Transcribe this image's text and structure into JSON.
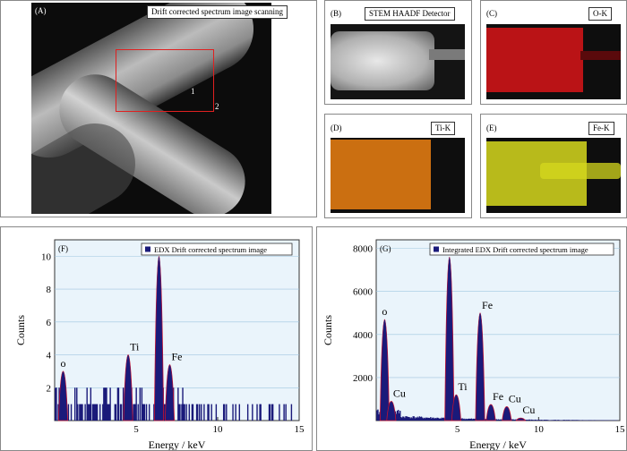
{
  "panels": {
    "a": {
      "label": "(A)",
      "title": "Drift corrected spectrum image scanning",
      "roi_1": "1",
      "roi_2": "2"
    },
    "b": {
      "label": "(B)",
      "title": "STEM HAADF Detector"
    },
    "c": {
      "label": "(C)",
      "title": "O-K",
      "color": "#d81418"
    },
    "d": {
      "label": "(D)",
      "title": "Ti-K",
      "color": "#e07a12"
    },
    "e": {
      "label": "(E)",
      "title": "Fe-K",
      "color": "#d6d81e"
    }
  },
  "chart_data": [
    {
      "type": "bar",
      "panel_label": "(F)",
      "legend": "EDX Drift corrected spectrum image",
      "legend_placement": "top",
      "xlabel": "Energy / keV",
      "ylabel": "Counts",
      "xlim": [
        0,
        15
      ],
      "ylim": [
        0,
        11
      ],
      "xticks": [
        5,
        10,
        15
      ],
      "yticks": [
        2,
        4,
        6,
        8,
        10
      ],
      "grid": true,
      "bar_color": "#1a1a7a",
      "envelope_color": "#c8102e",
      "peaks": [
        {
          "x": 0.52,
          "y": 3.0,
          "label": "o"
        },
        {
          "x": 4.51,
          "y": 4.0,
          "label": "Ti"
        },
        {
          "x": 6.4,
          "y": 10.0,
          "label": "Fe"
        },
        {
          "x": 7.06,
          "y": 3.4,
          "label": "Fe"
        }
      ]
    },
    {
      "type": "bar",
      "panel_label": "(G)",
      "legend": "Integrated EDX Drift corrected spectrum image",
      "legend_placement": "top",
      "xlabel": "Energy / keV",
      "ylabel": "Counts",
      "xlim": [
        0,
        15
      ],
      "ylim": [
        0,
        8400
      ],
      "xticks": [
        5,
        10,
        15
      ],
      "yticks": [
        2000,
        4000,
        6000,
        8000
      ],
      "grid": true,
      "bar_color": "#1a1a7a",
      "envelope_color": "#c8102e",
      "peaks": [
        {
          "x": 0.52,
          "y": 4700,
          "label": "o"
        },
        {
          "x": 0.93,
          "y": 900,
          "label": "Cu"
        },
        {
          "x": 4.51,
          "y": 7600,
          "label": "Ti"
        },
        {
          "x": 4.93,
          "y": 1200,
          "label": "Ti"
        },
        {
          "x": 6.4,
          "y": 5000,
          "label": "Fe"
        },
        {
          "x": 7.06,
          "y": 750,
          "label": "Fe"
        },
        {
          "x": 8.04,
          "y": 650,
          "label": "Cu"
        },
        {
          "x": 8.9,
          "y": 120,
          "label": "Cu"
        }
      ]
    }
  ]
}
